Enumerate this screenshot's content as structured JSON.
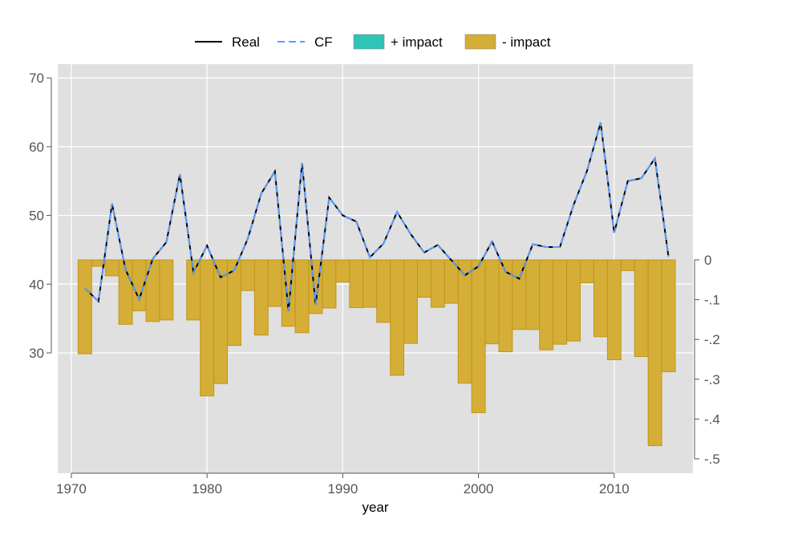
{
  "chart_data": {
    "type": "bar+line",
    "xlabel": "year",
    "x_ticks": [
      1970,
      1980,
      1990,
      2000,
      2010
    ],
    "x_range": [
      1969.0,
      2015.8
    ],
    "left_axis": {
      "ticks": [
        30,
        40,
        50,
        60,
        70
      ],
      "range": [
        12.5,
        72.0
      ]
    },
    "right_axis": {
      "ticks": [
        0,
        -0.1,
        -0.2,
        -0.3,
        -0.4,
        -0.5
      ],
      "tick_labels": [
        "0",
        "-.1",
        "-.2",
        "-.3",
        "-.4",
        "-.5"
      ],
      "range": [
        -0.53,
        0
      ]
    },
    "legend": {
      "position": "top",
      "entries": [
        {
          "label": "Real",
          "kind": "line",
          "color": "#000000"
        },
        {
          "label": "CF",
          "kind": "dashed-line",
          "color": "#5b9bff"
        },
        {
          "label": "+ impact",
          "kind": "box",
          "color": "#2ec4b6"
        },
        {
          "label": "- impact",
          "kind": "box",
          "color": "#d4ae36"
        }
      ]
    },
    "colors": {
      "panel": "#e0e0e0",
      "grid": "#ffffff",
      "real": "#000000",
      "cf": "#5b9bff",
      "neg_fill": "#d4ae36",
      "neg_edge": "#c0961c"
    },
    "years": [
      1971,
      1972,
      1973,
      1974,
      1975,
      1976,
      1977,
      1978,
      1979,
      1980,
      1981,
      1982,
      1983,
      1984,
      1985,
      1986,
      1987,
      1988,
      1989,
      1990,
      1991,
      1992,
      1993,
      1994,
      1995,
      1996,
      1997,
      1998,
      1999,
      2000,
      2001,
      2002,
      2003,
      2004,
      2005,
      2006,
      2007,
      2008,
      2009,
      2010,
      2011,
      2012,
      2013,
      2014
    ],
    "series": [
      {
        "name": "Real",
        "axis": "left",
        "values": [
          39.4,
          37.5,
          51.7,
          42.1,
          37.8,
          43.7,
          46.1,
          56.0,
          41.7,
          45.6,
          41.0,
          42.0,
          46.6,
          53.2,
          56.4,
          36.1,
          57.6,
          37.0,
          52.6,
          50.0,
          49.1,
          43.9,
          45.9,
          50.5,
          47.3,
          44.6,
          45.7,
          43.5,
          41.3,
          42.6,
          46.2,
          41.8,
          40.8,
          45.8,
          45.4,
          45.4,
          51.5,
          56.5,
          63.5,
          47.5,
          55.0,
          55.4,
          58.3,
          44.0
        ]
      },
      {
        "name": "CF",
        "axis": "left",
        "values": [
          39.4,
          37.5,
          51.7,
          42.1,
          37.8,
          43.7,
          46.1,
          56.0,
          41.7,
          45.6,
          41.0,
          42.0,
          46.6,
          53.2,
          56.4,
          36.1,
          57.6,
          37.0,
          52.6,
          50.0,
          49.1,
          43.9,
          45.9,
          50.5,
          47.3,
          44.6,
          45.7,
          43.5,
          41.3,
          42.6,
          46.2,
          41.8,
          40.8,
          45.8,
          45.4,
          45.4,
          51.5,
          56.5,
          63.5,
          47.5,
          55.0,
          55.4,
          58.3,
          44.0
        ]
      },
      {
        "name": "- impact",
        "axis": "right",
        "values": [
          -0.236,
          -0.016,
          -0.04,
          -0.162,
          -0.128,
          -0.155,
          -0.151,
          0,
          -0.151,
          -0.342,
          -0.311,
          -0.215,
          -0.077,
          -0.189,
          -0.117,
          -0.167,
          -0.183,
          -0.135,
          -0.121,
          -0.056,
          -0.12,
          -0.119,
          -0.157,
          -0.29,
          -0.21,
          -0.094,
          -0.119,
          -0.109,
          -0.31,
          -0.384,
          -0.211,
          -0.231,
          -0.175,
          -0.175,
          -0.226,
          -0.212,
          -0.204,
          -0.058,
          -0.193,
          -0.251,
          -0.027,
          -0.243,
          -0.467,
          -0.281
        ]
      }
    ]
  }
}
